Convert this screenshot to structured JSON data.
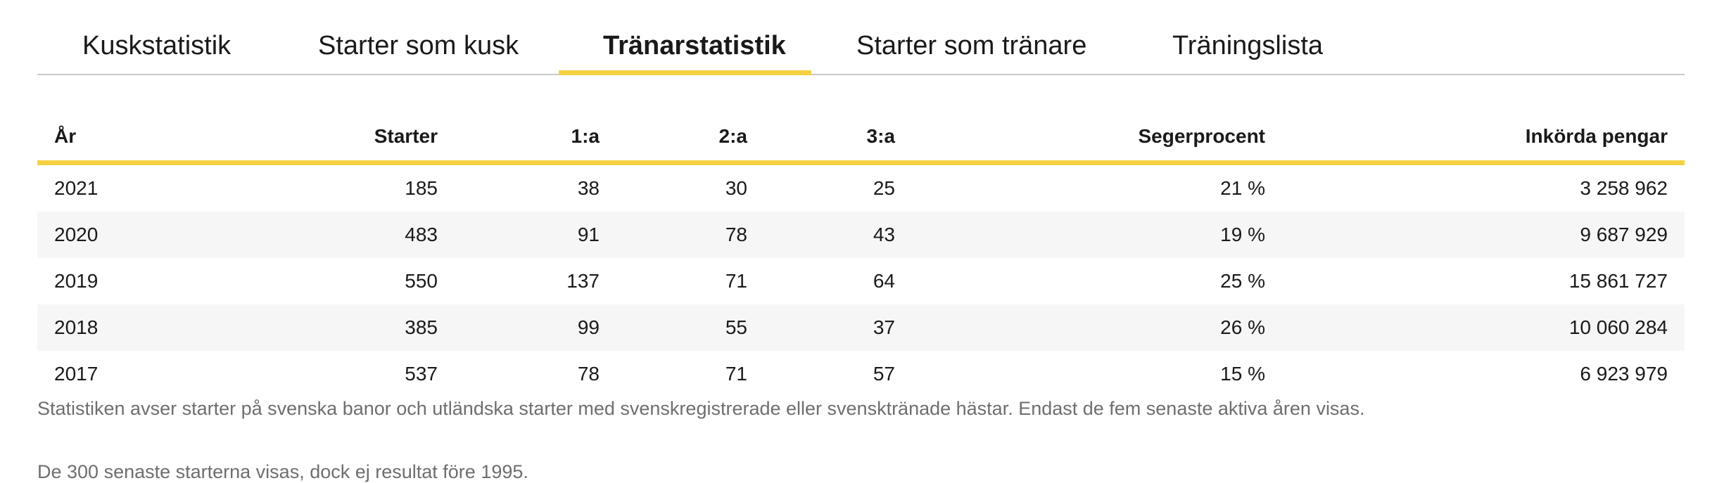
{
  "tabs": [
    {
      "label": "Kuskstatistik",
      "active": false
    },
    {
      "label": "Starter som kusk",
      "active": false
    },
    {
      "label": "Tränarstatistik",
      "active": true
    },
    {
      "label": "Starter som tränare",
      "active": false
    },
    {
      "label": "Träningslista",
      "active": false
    }
  ],
  "accent_color": "#f5d142",
  "table": {
    "headers": {
      "year": "År",
      "starts": "Starter",
      "first": "1:a",
      "second": "2:a",
      "third": "3:a",
      "win_pct": "Segerprocent",
      "earnings": "Inkörda pengar"
    },
    "rows": [
      {
        "year": "2021",
        "starts": "185",
        "first": "38",
        "second": "30",
        "third": "25",
        "win_pct": "21 %",
        "earnings": "3 258 962"
      },
      {
        "year": "2020",
        "starts": "483",
        "first": "91",
        "second": "78",
        "third": "43",
        "win_pct": "19 %",
        "earnings": "9 687 929"
      },
      {
        "year": "2019",
        "starts": "550",
        "first": "137",
        "second": "71",
        "third": "64",
        "win_pct": "25 %",
        "earnings": "15 861 727"
      },
      {
        "year": "2018",
        "starts": "385",
        "first": "99",
        "second": "55",
        "third": "37",
        "win_pct": "26 %",
        "earnings": "10 060 284"
      },
      {
        "year": "2017",
        "starts": "537",
        "first": "78",
        "second": "71",
        "third": "57",
        "win_pct": "15 %",
        "earnings": "6 923 979"
      }
    ]
  },
  "notes": {
    "stats_note": "Statistiken avser starter på svenska banor och utländska starter med svenskregistrerade eller svensktränade hästar. Endast de fem senaste aktiva åren visas.",
    "starts_note": "De 300 senaste starterna visas, dock ej resultat före 1995."
  }
}
